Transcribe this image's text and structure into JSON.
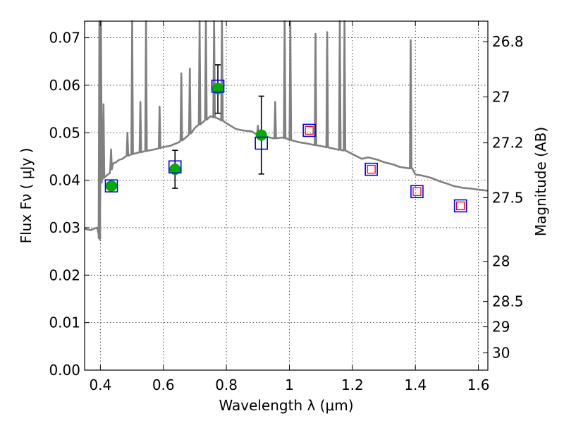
{
  "chart_data": {
    "type": "scatter",
    "xlabel": "Wavelength  λ (μm)",
    "ylabel": "Flux  Fν  ( μJy )",
    "y2label": "Magnitude (AB)",
    "xlim": [
      0.35,
      1.63
    ],
    "ylim": [
      0.0,
      0.0735
    ],
    "x_ticks": [
      0.4,
      0.6,
      0.8,
      1.0,
      1.2,
      1.4,
      1.6
    ],
    "x_tick_labels": [
      "0.4",
      "0.6",
      "0.8",
      "1",
      "1.2",
      "1.4",
      "1.6"
    ],
    "y_ticks": [
      0.0,
      0.01,
      0.02,
      0.03,
      0.04,
      0.05,
      0.06,
      0.07
    ],
    "y_tick_labels": [
      "0.00",
      "0.01",
      "0.02",
      "0.03",
      "0.04",
      "0.05",
      "0.06",
      "0.07"
    ],
    "y2_ticks": [
      26.8,
      27,
      27.2,
      27.5,
      28,
      28.5,
      29,
      30
    ],
    "y2_tick_labels": [
      "26.8",
      "27",
      "27.2",
      "27.5",
      "28",
      "28.5",
      "29",
      "30"
    ],
    "grid": true,
    "colors": {
      "model_spectrum": "#808080",
      "observed_points": "#00aa00",
      "model_squares": "#0000ff",
      "upper_limit_squares": "#ff0000",
      "error_bars": "#000000"
    },
    "model_spectrum": {
      "x": [
        0.35,
        0.36,
        0.37,
        0.38,
        0.39,
        0.395,
        0.398,
        0.4,
        0.403,
        0.41,
        0.42,
        0.43,
        0.44,
        0.45,
        0.46,
        0.47,
        0.48,
        0.5,
        0.52,
        0.55,
        0.58,
        0.6,
        0.62,
        0.65,
        0.68,
        0.7,
        0.73,
        0.75,
        0.78,
        0.8,
        0.83,
        0.85,
        0.88,
        0.9,
        0.92,
        0.95,
        0.98,
        1.0,
        1.03,
        1.05,
        1.08,
        1.1,
        1.13,
        1.15,
        1.18,
        1.2,
        1.23,
        1.25,
        1.28,
        1.3,
        1.33,
        1.35,
        1.38,
        1.39,
        1.4,
        1.42,
        1.45,
        1.48,
        1.5,
        1.52,
        1.55,
        1.58,
        1.6,
        1.63
      ],
      "y": [
        0.0298,
        0.0296,
        0.0295,
        0.0298,
        0.03,
        0.0285,
        0.0275,
        0.0385,
        0.04,
        0.0405,
        0.041,
        0.0415,
        0.0435,
        0.0438,
        0.0443,
        0.0445,
        0.045,
        0.0455,
        0.0458,
        0.0462,
        0.0466,
        0.047,
        0.0472,
        0.048,
        0.0495,
        0.051,
        0.0525,
        0.0535,
        0.0528,
        0.052,
        0.0508,
        0.0505,
        0.0503,
        0.0495,
        0.0493,
        0.0488,
        0.049,
        0.0485,
        0.048,
        0.0478,
        0.0474,
        0.0472,
        0.0468,
        0.0465,
        0.0462,
        0.0455,
        0.0445,
        0.0448,
        0.0443,
        0.0438,
        0.0433,
        0.0428,
        0.0425,
        0.0425,
        0.0412,
        0.041,
        0.0405,
        0.0397,
        0.0393,
        0.0388,
        0.0384,
        0.0382,
        0.038,
        0.0378
      ],
      "emission_lines": [
        {
          "x": 0.397,
          "peak": 0.0735
        },
        {
          "x": 0.402,
          "peak": 0.0735
        },
        {
          "x": 0.41,
          "peak": 0.056
        },
        {
          "x": 0.434,
          "peak": 0.0465
        },
        {
          "x": 0.486,
          "peak": 0.05
        },
        {
          "x": 0.501,
          "peak": 0.0735
        },
        {
          "x": 0.527,
          "peak": 0.0565
        },
        {
          "x": 0.545,
          "peak": 0.0735
        },
        {
          "x": 0.588,
          "peak": 0.0555
        },
        {
          "x": 0.657,
          "peak": 0.0625
        },
        {
          "x": 0.684,
          "peak": 0.0635
        },
        {
          "x": 0.715,
          "peak": 0.0735
        },
        {
          "x": 0.735,
          "peak": 0.0735
        },
        {
          "x": 0.761,
          "peak": 0.0735
        },
        {
          "x": 0.786,
          "peak": 0.0735
        },
        {
          "x": 0.9,
          "peak": 0.0515
        },
        {
          "x": 0.955,
          "peak": 0.0565
        },
        {
          "x": 0.985,
          "peak": 0.0735
        },
        {
          "x": 1.003,
          "peak": 0.0735
        },
        {
          "x": 1.083,
          "peak": 0.0708
        },
        {
          "x": 1.12,
          "peak": 0.0712
        },
        {
          "x": 1.16,
          "peak": 0.0735
        },
        {
          "x": 1.175,
          "peak": 0.0735
        },
        {
          "x": 1.385,
          "peak": 0.0695
        }
      ]
    },
    "observed_points": {
      "x": [
        0.435,
        0.637,
        0.773,
        0.911
      ],
      "y": [
        0.0388,
        0.0423,
        0.0593,
        0.0495
      ],
      "err_low": [
        0.0,
        0.004,
        0.0052,
        0.0082
      ],
      "err_high": [
        0.0,
        0.004,
        0.005,
        0.0082
      ]
    },
    "model_squares": {
      "x": [
        0.435,
        0.637,
        0.773,
        0.911,
        1.063,
        1.26,
        1.405,
        1.543
      ],
      "y": [
        0.0388,
        0.0428,
        0.0598,
        0.0478,
        0.0505,
        0.0423,
        0.0376,
        0.0346
      ]
    },
    "upper_limit_squares": {
      "x": [
        1.063,
        1.26,
        1.405,
        1.543
      ],
      "y": [
        0.0505,
        0.0423,
        0.0376,
        0.0346
      ]
    }
  }
}
